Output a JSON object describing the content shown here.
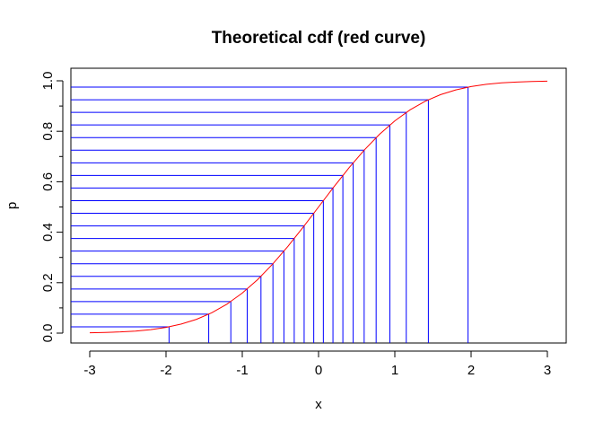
{
  "chart_data": {
    "type": "line",
    "title": "Theoretical cdf (red curve)",
    "xlabel": "x",
    "ylabel": "p",
    "xlim": [
      -3,
      3
    ],
    "ylim": [
      0,
      1
    ],
    "x_ticks": [
      -3,
      -2,
      -1,
      0,
      1,
      2,
      3
    ],
    "x_tick_labels": [
      "-3",
      "-2",
      "-1",
      "0",
      "1",
      "2",
      "3"
    ],
    "y_ticks": [
      0,
      0.2,
      0.4,
      0.6,
      0.8,
      1
    ],
    "y_tick_labels": [
      "0.0",
      "0.2",
      "0.4",
      "0.6",
      "0.8",
      "1.0"
    ],
    "y_minor_ticks": [
      0.1,
      0.3,
      0.5,
      0.7,
      0.9
    ],
    "grid": false,
    "series": [
      {
        "role": "cdf-curve",
        "color": "#ff0000",
        "x": [
          -3.0,
          -2.8,
          -2.6,
          -2.4,
          -2.2,
          -2.0,
          -1.8,
          -1.6,
          -1.4,
          -1.2,
          -1.0,
          -0.8,
          -0.6,
          -0.4,
          -0.2,
          0.0,
          0.2,
          0.4,
          0.6,
          0.8,
          1.0,
          1.2,
          1.4,
          1.6,
          1.8,
          2.0,
          2.2,
          2.4,
          2.6,
          2.8,
          3.0
        ],
        "y": [
          0.0013,
          0.0026,
          0.0047,
          0.0082,
          0.0139,
          0.0228,
          0.0359,
          0.0548,
          0.0808,
          0.1151,
          0.1587,
          0.2119,
          0.2743,
          0.3446,
          0.4207,
          0.5,
          0.5793,
          0.6554,
          0.7257,
          0.7881,
          0.8413,
          0.8849,
          0.9192,
          0.9452,
          0.9641,
          0.9772,
          0.9861,
          0.9918,
          0.9953,
          0.9974,
          0.9987
        ]
      },
      {
        "role": "quantile-segments",
        "color": "#0000ff",
        "p": [
          0.025,
          0.075,
          0.125,
          0.175,
          0.225,
          0.275,
          0.325,
          0.375,
          0.425,
          0.475,
          0.525,
          0.575,
          0.625,
          0.675,
          0.725,
          0.775,
          0.825,
          0.875,
          0.925,
          0.975
        ],
        "x": [
          -1.96,
          -1.44,
          -1.15,
          -0.935,
          -0.755,
          -0.598,
          -0.454,
          -0.319,
          -0.189,
          -0.063,
          0.063,
          0.189,
          0.319,
          0.454,
          0.598,
          0.755,
          0.935,
          1.15,
          1.44,
          1.96
        ]
      }
    ]
  }
}
